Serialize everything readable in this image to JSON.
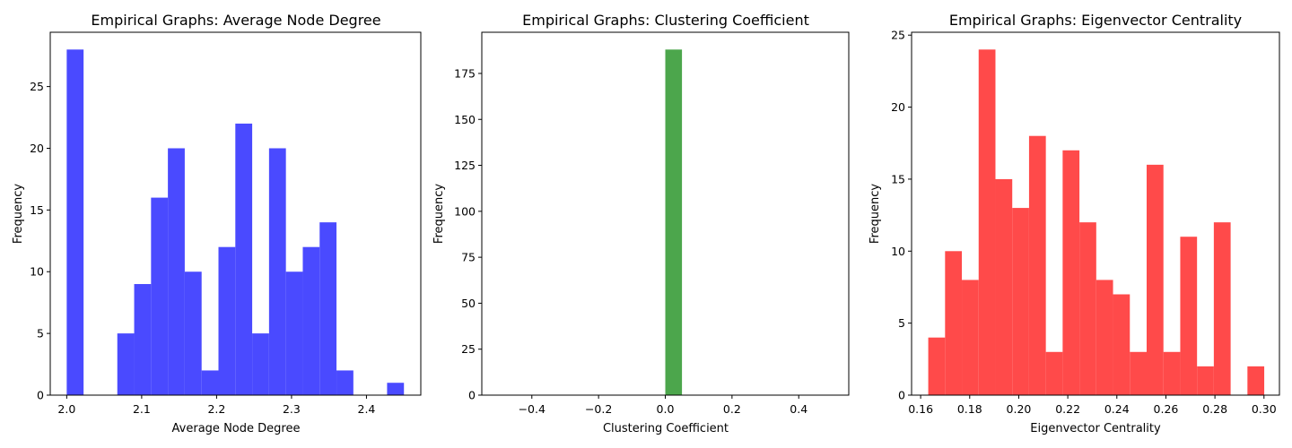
{
  "chart_data": [
    {
      "type": "bar",
      "title": "Empirical Graphs: Average Node Degree",
      "xlabel": "Average Node Degree",
      "ylabel": "Frequency",
      "color": "#4a4aff",
      "xlim": [
        1.978,
        2.4725
      ],
      "ylim": [
        0,
        29.4
      ],
      "xticks": [
        2.0,
        2.1,
        2.2,
        2.3,
        2.4
      ],
      "xtick_labels": [
        "2.0",
        "2.1",
        "2.2",
        "2.3",
        "2.4"
      ],
      "yticks": [
        0,
        5,
        10,
        15,
        20,
        25
      ],
      "ytick_labels": [
        "0",
        "5",
        "10",
        "15",
        "20",
        "25"
      ],
      "bin_edges": [
        2.0,
        2.0225,
        2.045,
        2.0675,
        2.09,
        2.1125,
        2.135,
        2.1575,
        2.18,
        2.2025,
        2.225,
        2.2475,
        2.27,
        2.2925,
        2.315,
        2.3375,
        2.36,
        2.3825,
        2.405,
        2.4275,
        2.45
      ],
      "counts": [
        28,
        0,
        0,
        5,
        9,
        16,
        20,
        10,
        2,
        12,
        22,
        5,
        20,
        10,
        12,
        14,
        2,
        0,
        0,
        1
      ],
      "grid": false
    },
    {
      "type": "bar",
      "title": "Empirical Graphs: Clustering Coefficient",
      "xlabel": "Clustering Coefficient",
      "ylabel": "Frequency",
      "color": "#4ca64c",
      "xlim": [
        -0.55,
        0.55
      ],
      "ylim": [
        0,
        197.4
      ],
      "xticks": [
        -0.4,
        -0.2,
        0.0,
        0.2,
        0.4
      ],
      "xtick_labels": [
        "−0.4",
        "−0.2",
        "0.0",
        "0.2",
        "0.4"
      ],
      "yticks": [
        0,
        25,
        50,
        75,
        100,
        125,
        150,
        175
      ],
      "ytick_labels": [
        "0",
        "25",
        "50",
        "75",
        "100",
        "125",
        "150",
        "175"
      ],
      "bin_edges": [
        -0.5,
        -0.45,
        -0.4,
        -0.35,
        -0.3,
        -0.25,
        -0.2,
        -0.15,
        -0.1,
        -0.05,
        0.0,
        0.05,
        0.1,
        0.15,
        0.2,
        0.25,
        0.3,
        0.35,
        0.4,
        0.45,
        0.5
      ],
      "counts": [
        0,
        0,
        0,
        0,
        0,
        0,
        0,
        0,
        0,
        0,
        188,
        0,
        0,
        0,
        0,
        0,
        0,
        0,
        0,
        0
      ],
      "grid": false
    },
    {
      "type": "bar",
      "title": "Empirical Graphs: Eigenvector Centrality",
      "xlabel": "Eigenvector Centrality",
      "ylabel": "Frequency",
      "color": "#ff4a4a",
      "xlim": [
        0.1563,
        0.3063
      ],
      "ylim": [
        0,
        25.2
      ],
      "xticks": [
        0.16,
        0.18,
        0.2,
        0.22,
        0.24,
        0.26,
        0.28,
        0.3
      ],
      "xtick_labels": [
        "0.16",
        "0.18",
        "0.20",
        "0.22",
        "0.24",
        "0.26",
        "0.28",
        "0.30"
      ],
      "yticks": [
        0,
        5,
        10,
        15,
        20,
        25
      ],
      "ytick_labels": [
        "0",
        "5",
        "10",
        "15",
        "20",
        "25"
      ],
      "bin_edges": [
        0.1631,
        0.16995,
        0.1768,
        0.18365,
        0.1905,
        0.19735,
        0.2042,
        0.21105,
        0.2179,
        0.22475,
        0.2316,
        0.23845,
        0.2453,
        0.25215,
        0.259,
        0.26585,
        0.2727,
        0.27955,
        0.2864,
        0.29325,
        0.3001
      ],
      "counts": [
        4,
        10,
        8,
        24,
        15,
        13,
        18,
        3,
        17,
        12,
        8,
        7,
        3,
        16,
        3,
        11,
        2,
        12,
        0,
        2
      ],
      "grid": false
    }
  ]
}
